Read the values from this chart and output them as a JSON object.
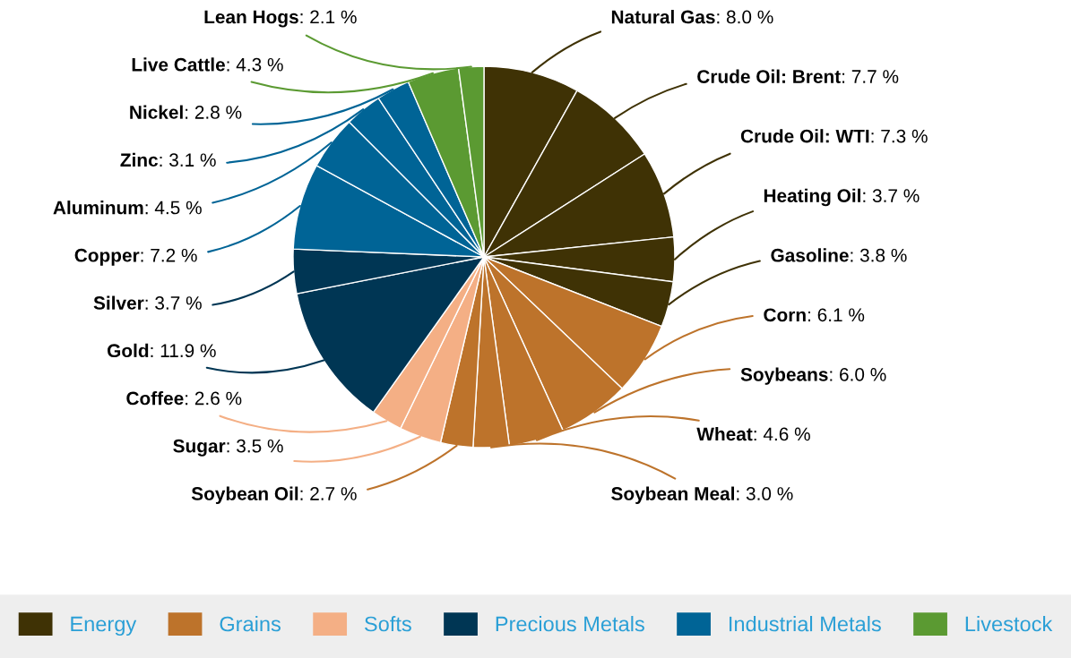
{
  "chart_data": {
    "type": "pie",
    "categories": [
      "Natural Gas",
      "Crude Oil: Brent",
      "Crude Oil: WTI",
      "Heating Oil",
      "Gasoline",
      "Corn",
      "Soybeans",
      "Wheat",
      "Soybean Meal",
      "Soybean Oil",
      "Sugar",
      "Coffee",
      "Gold",
      "Silver",
      "Copper",
      "Aluminum",
      "Zinc",
      "Nickel",
      "Live Cattle",
      "Lean Hogs"
    ],
    "values": [
      8.0,
      7.7,
      7.3,
      3.7,
      3.8,
      6.1,
      6.0,
      4.6,
      3.0,
      2.7,
      3.5,
      2.6,
      11.9,
      3.7,
      7.2,
      4.5,
      3.1,
      2.8,
      4.3,
      2.1
    ],
    "colors": [
      "#3f3205",
      "#3f3205",
      "#3f3205",
      "#3f3205",
      "#3f3205",
      "#bd732b",
      "#bd732b",
      "#bd732b",
      "#bd732b",
      "#bd732b",
      "#f4af85",
      "#f4af85",
      "#003654",
      "#003654",
      "#006496",
      "#006496",
      "#006496",
      "#006496",
      "#5b9a32",
      "#5b9a32"
    ],
    "annotations": [
      "Energy",
      "Grains",
      "Softs",
      "Precious Metals",
      "Industrial Metals",
      "Livestock"
    ],
    "value_labels": [
      ": 8.0 %",
      ": 7.7 %",
      ": 7.3 %",
      ": 3.7 %",
      ": 3.8 %",
      ": 6.1 %",
      ": 6.0 %",
      ": 4.6 %",
      ": 3.0 %",
      ": 2.7 %",
      ": 3.5 %",
      ": 2.6 %",
      ": 11.9 %",
      ": 3.7 %",
      ": 7.2 %",
      ": 4.5 %",
      ": 3.1 %",
      ": 2.8 %",
      ": 4.3 %",
      ": 2.1 %"
    ]
  }
}
